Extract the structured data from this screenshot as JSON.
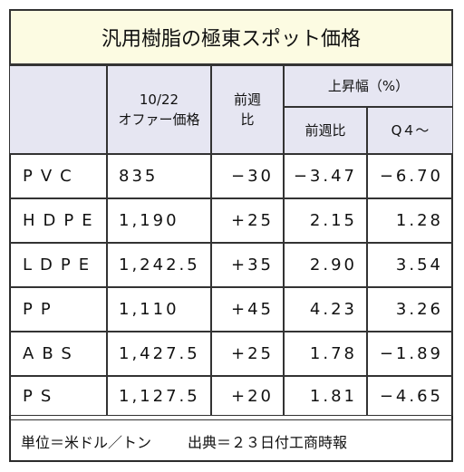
{
  "title": "汎用樹脂の極東スポット価格",
  "header": {
    "offer": [
      "10/22",
      "オファー価格"
    ],
    "week": [
      "前週",
      "比"
    ],
    "rise": "上昇幅（%）",
    "rise_week": "前週比",
    "rise_q4": "Q４～"
  },
  "table": {
    "rows": [
      [
        "PVC",
        "835",
        "−30",
        "−3.47",
        "−6.70"
      ],
      [
        "HDPE",
        "1,190",
        "+25",
        "2.15",
        "1.28"
      ],
      [
        "LDPE",
        "1,242.5",
        "+35",
        "2.90",
        "3.54"
      ],
      [
        "PP",
        "1,110",
        "+45",
        "4.23",
        "3.26"
      ],
      [
        "ABS",
        "1,427.5",
        "+25",
        "1.78",
        "−1.89"
      ],
      [
        "PS",
        "1,127.5",
        "+20",
        "1.81",
        "−4.65"
      ]
    ]
  },
  "footer": {
    "unit": "単位＝米ドル／トン",
    "source": "出典＝２３日付工商時報"
  }
}
